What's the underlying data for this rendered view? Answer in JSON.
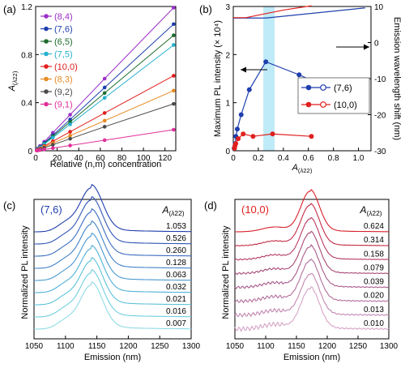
{
  "chart_data": [
    {
      "panel": "(a)",
      "type": "scatter",
      "xlabel": "Relative (n,m) concentration",
      "ylabel": "A(λ22)",
      "xlim": [
        0,
        130
      ],
      "ylim": [
        0,
        1.2
      ],
      "xticks": [
        0,
        20,
        40,
        60,
        80,
        100,
        120
      ],
      "yticks": [
        "0",
        "0.4",
        "0.8",
        "1.2"
      ],
      "ytick_values": [
        0,
        0.4,
        0.8,
        1.2
      ],
      "legend_position": "top-left",
      "x": [
        1,
        2,
        4,
        8,
        16,
        32,
        64,
        128
      ],
      "series": [
        {
          "name": "(8,4)",
          "color": "#9b30c8",
          "values": [
            0.01,
            0.02,
            0.04,
            0.075,
            0.15,
            0.3,
            0.6,
            1.19
          ]
        },
        {
          "name": "(7,6)",
          "color": "#1f3fae",
          "values": [
            0.008,
            0.017,
            0.033,
            0.066,
            0.13,
            0.26,
            0.526,
            1.053
          ]
        },
        {
          "name": "(6,5)",
          "color": "#1c6b2c",
          "values": [
            0.007,
            0.015,
            0.03,
            0.06,
            0.12,
            0.24,
            0.48,
            0.96
          ]
        },
        {
          "name": "(7,5)",
          "color": "#25b0cf",
          "values": [
            0.007,
            0.014,
            0.028,
            0.055,
            0.11,
            0.22,
            0.44,
            0.88
          ]
        },
        {
          "name": "(10,0)",
          "color": "#e0201e",
          "values": [
            0.005,
            0.01,
            0.02,
            0.039,
            0.079,
            0.158,
            0.314,
            0.624
          ]
        },
        {
          "name": "(8,3)",
          "color": "#e88a22",
          "values": [
            0.004,
            0.008,
            0.016,
            0.032,
            0.063,
            0.126,
            0.25,
            0.5
          ]
        },
        {
          "name": "(9,2)",
          "color": "#4a4a4a",
          "values": [
            0.003,
            0.006,
            0.012,
            0.025,
            0.05,
            0.1,
            0.2,
            0.39
          ]
        },
        {
          "name": "(9,1)",
          "color": "#e0309a",
          "values": [
            0.0015,
            0.003,
            0.006,
            0.011,
            0.022,
            0.044,
            0.088,
            0.175
          ]
        }
      ]
    },
    {
      "panel": "(b)",
      "type": "scatter",
      "xlabel": "A(λ22)",
      "ylabel_left": "Maximum PL intensity (× 10⁴)",
      "ylabel_right": "Emission wavelength shift (nm)",
      "xlim": [
        0,
        1.1
      ],
      "ylim_left": [
        0,
        3
      ],
      "ylim_right": [
        -30,
        10
      ],
      "xticks": [
        "0",
        "0.2",
        "0.4",
        "0.6",
        "0.8",
        "1.0"
      ],
      "xtick_values": [
        0,
        0.2,
        0.4,
        0.6,
        0.8,
        1.0
      ],
      "yticks_left": [
        0,
        1,
        2,
        3
      ],
      "yticks_right": [
        -30,
        -20,
        -10,
        0,
        10
      ],
      "highlight_x_range": [
        0.24,
        0.33
      ],
      "legend_position": "center-right",
      "series": [
        {
          "name": "(7,6)",
          "color": "#1f3fae",
          "axis": "left",
          "x": [
            0.007,
            0.016,
            0.021,
            0.032,
            0.063,
            0.128,
            0.26,
            0.526,
            1.053
          ],
          "values": [
            0.05,
            0.15,
            0.3,
            0.45,
            0.75,
            1.27,
            1.85,
            1.58,
            0.95
          ]
        },
        {
          "name": "(10,0)",
          "color": "#e0201e",
          "axis": "left",
          "x": [
            0.01,
            0.013,
            0.02,
            0.039,
            0.079,
            0.158,
            0.314,
            0.624
          ],
          "values": [
            0.05,
            0.1,
            0.15,
            0.25,
            0.35,
            0.3,
            0.35,
            0.3
          ]
        },
        {
          "name": "(7,6) shift",
          "color": "#1f3fae",
          "axis": "right",
          "x": [
            0.0,
            0.26,
            1.053
          ],
          "values": [
            6.8,
            6.8,
            9.6
          ]
        },
        {
          "name": "(10,0) shift",
          "color": "#e0201e",
          "axis": "right",
          "x": [
            0.0,
            0.1,
            0.4,
            0.624
          ],
          "values": [
            6.9,
            6.9,
            9.0,
            10.2
          ]
        }
      ]
    },
    {
      "panel": "(c)",
      "type": "line",
      "label": "(7,6)",
      "xlabel": "Emission (nm)",
      "ylabel": "Normalized PL intensity",
      "legend_title": "A(λ22)",
      "xlim": [
        1050,
        1300
      ],
      "xticks": [
        1050,
        1100,
        1150,
        1200,
        1250,
        1300
      ],
      "peak_nm": 1141,
      "series": [
        {
          "name": "1.053",
          "color": "#1f3fae"
        },
        {
          "name": "0.526",
          "color": "#2f55b5"
        },
        {
          "name": "0.260",
          "color": "#3b6cbf"
        },
        {
          "name": "0.128",
          "color": "#4282c8"
        },
        {
          "name": "0.063",
          "color": "#4a99d0"
        },
        {
          "name": "0.032",
          "color": "#4fb0d6"
        },
        {
          "name": "0.021",
          "color": "#5cc2da"
        },
        {
          "name": "0.016",
          "color": "#70cfde"
        },
        {
          "name": "0.007",
          "color": "#8fdbe5"
        }
      ]
    },
    {
      "panel": "(d)",
      "type": "line",
      "label": "(10,0)",
      "xlabel": "Emission (nm)",
      "ylabel": "Normalized PL intensity",
      "legend_title": "A(λ22)",
      "xlim": [
        1050,
        1300
      ],
      "xticks": [
        1050,
        1100,
        1150,
        1200,
        1250,
        1300
      ],
      "peak_nm": 1172,
      "series": [
        {
          "name": "0.624",
          "color": "#d8202a"
        },
        {
          "name": "0.314",
          "color": "#c42a45"
        },
        {
          "name": "0.158",
          "color": "#b73a5f"
        },
        {
          "name": "0.079",
          "color": "#a84a75"
        },
        {
          "name": "0.039",
          "color": "#a85a8a"
        },
        {
          "name": "0.020",
          "color": "#b36f9c"
        },
        {
          "name": "0.013",
          "color": "#c387b0"
        },
        {
          "name": "0.010",
          "color": "#d6a3c6"
        }
      ]
    }
  ]
}
